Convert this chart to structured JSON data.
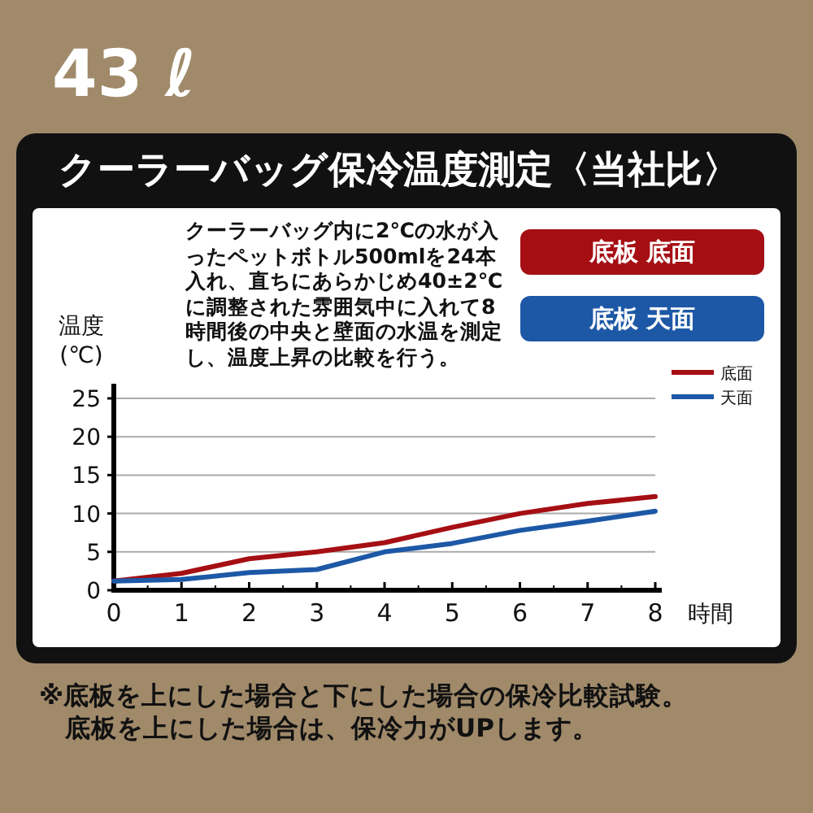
{
  "chart_data": {
    "type": "line",
    "title": "43 ℓ",
    "subtitle": "クーラーバッグ保冷温度測定〈当社比〉",
    "xlabel": "時間",
    "ylabel": "温度 (℃)",
    "x": [
      0,
      1,
      2,
      3,
      4,
      5,
      6,
      7,
      8
    ],
    "series": [
      {
        "name": "底面",
        "color": "#a50f14",
        "values": [
          1.2,
          2.2,
          4.1,
          5.0,
          6.2,
          8.2,
          10.0,
          11.3,
          12.2
        ]
      },
      {
        "name": "天面",
        "color": "#1d58a6",
        "values": [
          1.2,
          1.4,
          2.3,
          2.7,
          5.0,
          6.1,
          7.8,
          9.0,
          10.3
        ]
      }
    ],
    "xlim": [
      0,
      8
    ],
    "xticks": [
      0,
      1,
      2,
      3,
      4,
      5,
      6,
      7,
      8
    ],
    "ylim": [
      0,
      25
    ],
    "yticks": [
      0,
      5,
      10,
      15,
      20,
      25
    ],
    "grid": "y",
    "legend": "top right",
    "marker": "none",
    "line_style": "solid",
    "annotations": [
      "クーラーバッグ内に2℃の水が入ったペットボトル500mlを24本入れ、直ちにあらかじめ40±2℃に調整された雰囲気中に入れて8時間後の中央と壁面の水温を測定し、温度上昇の比較を行う。",
      "底板 底面",
      "底板 天面",
      "※底板を上にした場合と下にした場合の保冷比較試験。",
      "底板を上にした場合は、保冷力がUPします。"
    ]
  }
}
